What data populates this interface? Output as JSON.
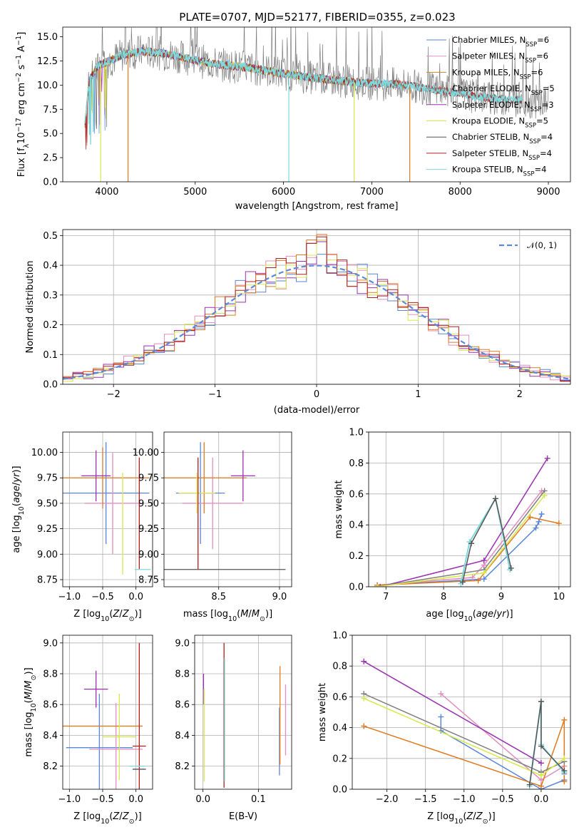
{
  "figure": {
    "title": "PLATE=0707, MJD=52177, FIBERID=0355, z=0.023"
  },
  "colors": {
    "chabrier_miles": "#5a86d8",
    "salpeter_miles": "#e08fc0",
    "kroupa_miles": "#c48a2a",
    "chabrier_elodie": "#808080",
    "salpeter_elodie": "#9a31b0",
    "kroupa_elodie": "#d7e84c",
    "chabrier_stelib": "#555555",
    "salpeter_stelib": "#b21e1e",
    "kroupa_stelib": "#7fd8dc",
    "orange": "#e07a20",
    "green": "#b6de52",
    "gauss": "#5a8ad8"
  },
  "chart_data": [
    {
      "id": "spectrum",
      "type": "line",
      "xlabel": "wavelength [Angstrom, rest frame]",
      "ylabel": "Flux [f",
      "xlim": [
        3500,
        9250
      ],
      "ylim": [
        0,
        16
      ],
      "xticks": [
        "4000",
        "5000",
        "6000",
        "7000",
        "8000",
        "9000"
      ],
      "yticks": [
        "0.0",
        "2.5",
        "5.0",
        "7.5",
        "10.0",
        "12.5",
        "15.0"
      ],
      "legend_position": "upper-right",
      "legend": [
        {
          "pre": "Chabrier MILES, N",
          "n": "6",
          "key": "chabrier_miles"
        },
        {
          "pre": "Salpeter MILES, N",
          "n": "6",
          "key": "salpeter_miles"
        },
        {
          "pre": "Kroupa MILES, N",
          "n": "6",
          "key": "kroupa_miles"
        },
        {
          "pre": "Chabrier ELODIE, N",
          "n": "5",
          "key": "chabrier_elodie"
        },
        {
          "pre": "Salpeter ELODIE, N",
          "n": "3",
          "key": "salpeter_elodie"
        },
        {
          "pre": "Kroupa ELODIE, N",
          "n": "5",
          "key": "kroupa_elodie"
        },
        {
          "pre": "Chabrier STELIB, N",
          "n": "4",
          "key": "chabrier_stelib"
        },
        {
          "pre": "Salpeter STELIB, N",
          "n": "4",
          "key": "salpeter_stelib"
        },
        {
          "pre": "Kroupa STELIB, N",
          "n": "4",
          "key": "kroupa_stelib"
        }
      ],
      "envelope": [
        [
          3750,
          6.0
        ],
        [
          3800,
          10.5
        ],
        [
          3900,
          12.0
        ],
        [
          4000,
          12.4
        ],
        [
          4100,
          12.8
        ],
        [
          4200,
          13.2
        ],
        [
          4400,
          13.5
        ],
        [
          4600,
          13.3
        ],
        [
          4800,
          13.0
        ],
        [
          5000,
          12.6
        ],
        [
          5200,
          12.2
        ],
        [
          5400,
          12.0
        ],
        [
          5600,
          11.8
        ],
        [
          5800,
          11.5
        ],
        [
          6000,
          11.2
        ],
        [
          6200,
          10.9
        ],
        [
          6400,
          10.7
        ],
        [
          6600,
          10.5
        ],
        [
          6800,
          10.3
        ],
        [
          7000,
          10.2
        ],
        [
          7200,
          10.1
        ],
        [
          7400,
          10.0
        ],
        [
          7600,
          9.7
        ],
        [
          7800,
          9.4
        ],
        [
          8000,
          9.1
        ],
        [
          8200,
          8.8
        ],
        [
          8400,
          8.6
        ],
        [
          8600,
          8.5
        ],
        [
          8800,
          8.3
        ],
        [
          9000,
          8.2
        ]
      ]
    },
    {
      "id": "residuals",
      "type": "histogram",
      "xlabel": "(data-model)/error",
      "ylabel": "Normed distribution",
      "xlim": [
        -2.5,
        2.5
      ],
      "ylim": [
        0,
        0.52
      ],
      "xticks": [
        "−2",
        "−1",
        "0",
        "1",
        "2"
      ],
      "yticks": [
        "0.0",
        "0.1",
        "0.2",
        "0.3",
        "0.4",
        "0.5"
      ],
      "legend": "𝒩(0, 1)",
      "legend_position": "upper-right",
      "bin_width": 0.1
    },
    {
      "id": "age_vs_Z",
      "type": "errorbar",
      "xlabel": "Z [log",
      "ylabel": "age  [log",
      "xlim": [
        -1.1,
        0.25
      ],
      "ylim": [
        8.68,
        10.2
      ],
      "xticks": [
        "−1.0",
        "−0.5",
        "0.0"
      ],
      "yticks": [
        "8.75",
        "9.00",
        "9.25",
        "9.50",
        "9.75",
        "10.00"
      ],
      "points": [
        {
          "x": -0.45,
          "y": 9.6,
          "xerr": 0.65,
          "yerr": 0.5,
          "key": "chabrier_miles"
        },
        {
          "x": -0.35,
          "y": 9.5,
          "xerr": 0.42,
          "yerr": 0.5,
          "key": "salpeter_miles"
        },
        {
          "x": -0.5,
          "y": 9.75,
          "xerr": 0.7,
          "yerr": 0.3,
          "key": "orange"
        },
        {
          "x": -0.6,
          "y": 9.77,
          "xerr": 0.22,
          "yerr": 0.25,
          "key": "salpeter_elodie"
        },
        {
          "x": -0.2,
          "y": 9.3,
          "xerr": 0.0,
          "yerr": 0.5,
          "key": "kroupa_elodie"
        },
        {
          "x": 0.05,
          "y": 9.4,
          "xerr": 0.0,
          "yerr": 0.55,
          "key": "salpeter_stelib"
        },
        {
          "x": 0.1,
          "y": 8.85,
          "xerr": 0.12,
          "yerr": 0.0,
          "key": "kroupa_stelib"
        }
      ]
    },
    {
      "id": "age_vs_mass",
      "type": "errorbar",
      "xlabel": "mass [log",
      "ylabel": "",
      "xlim": [
        8.05,
        9.1
      ],
      "ylim": [
        8.68,
        10.2
      ],
      "xticks": [
        "8.5",
        "9.0"
      ],
      "yticks": [
        "8.75",
        "9.00",
        "9.25",
        "9.50",
        "9.75",
        "10.00"
      ],
      "points": [
        {
          "x": 8.35,
          "y": 9.6,
          "xerr": 0.2,
          "yerr": 0.5,
          "key": "chabrier_miles"
        },
        {
          "x": 8.45,
          "y": 9.5,
          "xerr": 0.25,
          "yerr": 0.45,
          "key": "salpeter_miles"
        },
        {
          "x": 8.38,
          "y": 9.75,
          "xerr": 0.35,
          "yerr": 0.35,
          "key": "orange"
        },
        {
          "x": 8.7,
          "y": 9.77,
          "xerr": 0.1,
          "yerr": 0.25,
          "key": "salpeter_elodie"
        },
        {
          "x": 8.32,
          "y": 9.6,
          "xerr": 0.15,
          "yerr": 0.2,
          "key": "kroupa_elodie"
        },
        {
          "x": 8.33,
          "y": 9.4,
          "xerr": 0.0,
          "yerr": 0.55,
          "key": "salpeter_stelib"
        },
        {
          "x": 8.55,
          "y": 8.85,
          "xerr": 0.5,
          "yerr": 0.0,
          "key": "chabrier_stelib"
        }
      ]
    },
    {
      "id": "weight_vs_age",
      "type": "line",
      "xlabel": "age  [log",
      "ylabel": "mass weight",
      "xlim": [
        6.7,
        10.2
      ],
      "ylim": [
        0,
        1.0
      ],
      "xticks": [
        "7",
        "8",
        "9",
        "10"
      ],
      "yticks": [
        "0.0",
        "0.2",
        "0.4",
        "0.6",
        "0.8",
        "1.0"
      ],
      "series": [
        {
          "key": "chabrier_miles",
          "x": [
            6.85,
            8.7,
            9.6,
            9.65,
            9.7
          ],
          "y": [
            0.01,
            0.05,
            0.38,
            0.42,
            0.47
          ]
        },
        {
          "key": "salpeter_miles",
          "x": [
            6.85,
            8.5,
            8.7,
            9.7
          ],
          "y": [
            0.01,
            0.06,
            0.14,
            0.62
          ]
        },
        {
          "key": "orange",
          "x": [
            6.85,
            8.6,
            9.5,
            10.0
          ],
          "y": [
            0.01,
            0.04,
            0.45,
            0.41
          ]
        },
        {
          "key": "salpeter_elodie",
          "x": [
            6.9,
            8.7,
            9.8
          ],
          "y": [
            0.0,
            0.17,
            0.83
          ]
        },
        {
          "key": "chabrier_elodie",
          "x": [
            6.85,
            8.7,
            9.75
          ],
          "y": [
            0.0,
            0.11,
            0.62
          ]
        },
        {
          "key": "kroupa_elodie",
          "x": [
            6.85,
            8.7,
            9.75
          ],
          "y": [
            0.0,
            0.09,
            0.59
          ]
        },
        {
          "key": "kroupa_stelib",
          "x": [
            8.3,
            8.45,
            8.9,
            9.15
          ],
          "y": [
            0.02,
            0.29,
            0.57,
            0.11
          ]
        },
        {
          "key": "chabrier_stelib",
          "x": [
            8.33,
            8.48,
            8.9,
            9.17
          ],
          "y": [
            0.03,
            0.28,
            0.57,
            0.12
          ]
        }
      ]
    },
    {
      "id": "mass_vs_Z",
      "type": "errorbar",
      "xlabel": "Z [log",
      "ylabel": "mass [log",
      "xlim": [
        -1.1,
        0.25
      ],
      "ylim": [
        8.05,
        9.05
      ],
      "xticks": [
        "−1.0",
        "−0.5",
        "0.0"
      ],
      "yticks": [
        "8.2",
        "8.4",
        "8.6",
        "8.8",
        "9.0"
      ],
      "points": [
        {
          "x": -0.55,
          "y": 8.32,
          "xerr": 0.5,
          "yerr": 0.35,
          "key": "chabrier_miles"
        },
        {
          "x": -0.3,
          "y": 8.31,
          "xerr": 0.4,
          "yerr": 0.3,
          "key": "salpeter_miles"
        },
        {
          "x": -0.5,
          "y": 8.46,
          "xerr": 0.6,
          "yerr": 0.0,
          "key": "orange"
        },
        {
          "x": -0.6,
          "y": 8.7,
          "xerr": 0.18,
          "yerr": 0.12,
          "key": "salpeter_elodie"
        },
        {
          "x": -0.25,
          "y": 8.39,
          "xerr": 0.25,
          "yerr": 0.28,
          "key": "kroupa_elodie"
        },
        {
          "x": 0.05,
          "y": 8.33,
          "xerr": 0.1,
          "yerr": 0.67,
          "key": "salpeter_stelib"
        },
        {
          "x": 0.05,
          "y": 8.18,
          "xerr": 0.1,
          "yerr": 0.0,
          "key": "chabrier_stelib"
        },
        {
          "x": 0.02,
          "y": 8.2,
          "xerr": 0.12,
          "yerr": 0.0,
          "key": "kroupa_stelib"
        }
      ]
    },
    {
      "id": "mass_vs_ebv",
      "type": "errorbar",
      "xlabel": "E(B-V)",
      "ylabel": "",
      "xlim": [
        -0.015,
        0.16
      ],
      "ylim": [
        8.05,
        9.05
      ],
      "xticks": [
        "0.0",
        "0.1"
      ],
      "yticks": [
        "8.2",
        "8.4",
        "8.6",
        "8.8",
        "9.0"
      ],
      "points": [
        {
          "x": 0.001,
          "y": 8.7,
          "xerr": 0.0,
          "yerr": 0.1,
          "key": "salpeter_elodie"
        },
        {
          "x": 0.002,
          "y": 8.4,
          "xerr": 0.0,
          "yerr": 0.3,
          "key": "kroupa_elodie"
        },
        {
          "x": 0.038,
          "y": 8.53,
          "xerr": 0.0,
          "yerr": 0.47,
          "key": "salpeter_stelib"
        },
        {
          "x": 0.039,
          "y": 8.5,
          "xerr": 0.0,
          "yerr": 0.4,
          "key": "kroupa_stelib"
        },
        {
          "x": 0.138,
          "y": 8.36,
          "xerr": 0.0,
          "yerr": 0.22,
          "key": "chabrier_miles"
        },
        {
          "x": 0.139,
          "y": 8.53,
          "xerr": 0.0,
          "yerr": 0.32,
          "key": "orange"
        },
        {
          "x": 0.149,
          "y": 8.5,
          "xerr": 0.0,
          "yerr": 0.23,
          "key": "salpeter_miles"
        }
      ]
    },
    {
      "id": "weight_vs_Z",
      "type": "line",
      "xlabel": "Z [log",
      "ylabel": "mass weight",
      "xlim": [
        -2.45,
        0.38
      ],
      "ylim": [
        0,
        1.0
      ],
      "xticks": [
        "−2.0",
        "−1.5",
        "−1.0",
        "−0.5",
        "0.0"
      ],
      "yticks": [
        "0.0",
        "0.2",
        "0.4",
        "0.6",
        "0.8",
        "1.0"
      ],
      "series": [
        {
          "key": "chabrier_miles",
          "x": [
            -1.3,
            -1.3,
            0.0,
            0.3,
            0.3
          ],
          "y": [
            0.47,
            0.38,
            0.0,
            0.06,
            0.1
          ]
        },
        {
          "key": "salpeter_miles",
          "x": [
            -1.3,
            0.0,
            0.3
          ],
          "y": [
            0.62,
            0.06,
            0.15
          ]
        },
        {
          "key": "orange",
          "x": [
            -2.3,
            0.0,
            0.3,
            0.3
          ],
          "y": [
            0.41,
            0.02,
            0.45,
            0.05
          ]
        },
        {
          "key": "salpeter_elodie",
          "x": [
            -2.3,
            0.0
          ],
          "y": [
            0.83,
            0.17
          ]
        },
        {
          "key": "chabrier_elodie",
          "x": [
            -2.3,
            0.0,
            0.3
          ],
          "y": [
            0.62,
            0.11,
            0.18
          ]
        },
        {
          "key": "kroupa_elodie",
          "x": [
            -2.3,
            0.0,
            0.3
          ],
          "y": [
            0.59,
            0.09,
            0.2
          ]
        },
        {
          "key": "kroupa_stelib",
          "x": [
            -0.15,
            0.0,
            0.0,
            0.3
          ],
          "y": [
            0.02,
            0.57,
            0.29,
            0.11
          ]
        },
        {
          "key": "chabrier_stelib",
          "x": [
            -0.15,
            0.0,
            0.0,
            0.3
          ],
          "y": [
            0.03,
            0.57,
            0.28,
            0.12
          ]
        }
      ]
    }
  ]
}
